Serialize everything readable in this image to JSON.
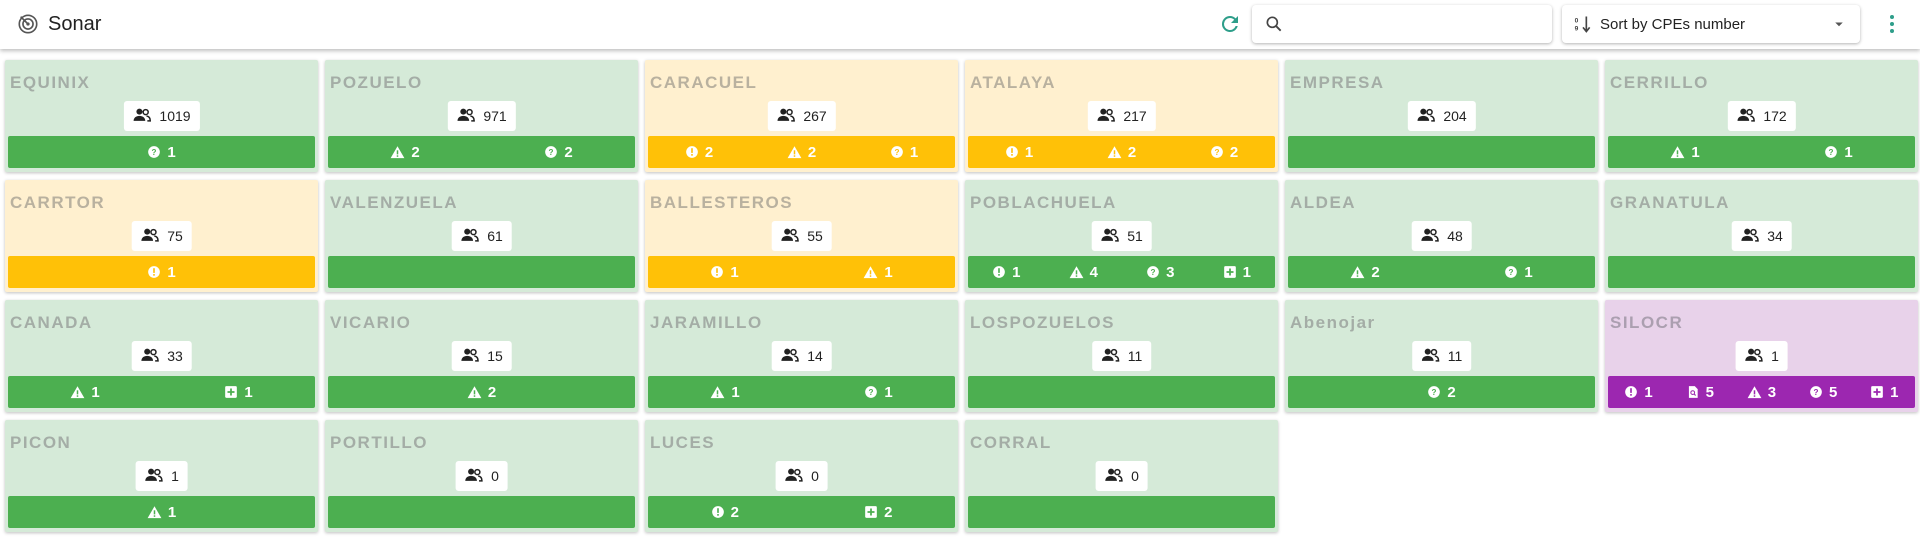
{
  "header": {
    "title": "Sonar",
    "search_placeholder": "",
    "search_value": "",
    "sort_label": "Sort by CPEs number"
  },
  "colors": {
    "green_card": "#d5ead8",
    "green_bar": "#4caf50",
    "amber_card": "#fff0cf",
    "amber_bar": "#ffc107",
    "purple_card": "#e8d2ea",
    "purple_bar": "#9c27b0",
    "accent": "#2e9e8a"
  },
  "cards": [
    {
      "name": "EQUINIX",
      "count": "1019",
      "tone": "green",
      "badges": [
        {
          "icon": "help-circle-icon",
          "value": "1"
        }
      ]
    },
    {
      "name": "POZUELO",
      "count": "971",
      "tone": "green",
      "badges": [
        {
          "icon": "warning-icon",
          "value": "2"
        },
        {
          "icon": "help-circle-icon",
          "value": "2"
        }
      ]
    },
    {
      "name": "CARACUEL",
      "count": "267",
      "tone": "amber",
      "badges": [
        {
          "icon": "alert-circle-icon",
          "value": "2"
        },
        {
          "icon": "warning-icon",
          "value": "2"
        },
        {
          "icon": "help-circle-icon",
          "value": "1"
        }
      ]
    },
    {
      "name": "ATALAYA",
      "count": "217",
      "tone": "amber",
      "badges": [
        {
          "icon": "alert-circle-icon",
          "value": "1"
        },
        {
          "icon": "warning-icon",
          "value": "2"
        },
        {
          "icon": "help-circle-icon",
          "value": "2"
        }
      ]
    },
    {
      "name": "EMPRESA",
      "count": "204",
      "tone": "green",
      "badges": []
    },
    {
      "name": "CERRILLO",
      "count": "172",
      "tone": "green",
      "badges": [
        {
          "icon": "warning-icon",
          "value": "1"
        },
        {
          "icon": "help-circle-icon",
          "value": "1"
        }
      ]
    },
    {
      "name": "CARRTOR",
      "count": "75",
      "tone": "amber",
      "badges": [
        {
          "icon": "alert-circle-icon",
          "value": "1"
        }
      ]
    },
    {
      "name": "VALENZUELA",
      "count": "61",
      "tone": "green",
      "badges": []
    },
    {
      "name": "BALLESTEROS",
      "count": "55",
      "tone": "amber",
      "badges": [
        {
          "icon": "alert-circle-icon",
          "value": "1"
        },
        {
          "icon": "warning-icon",
          "value": "1"
        }
      ]
    },
    {
      "name": "POBLACHUELA",
      "count": "51",
      "tone": "green",
      "badges": [
        {
          "icon": "alert-circle-icon",
          "value": "1"
        },
        {
          "icon": "warning-icon",
          "value": "4"
        },
        {
          "icon": "help-circle-icon",
          "value": "3"
        },
        {
          "icon": "plus-box-icon",
          "value": "1"
        }
      ]
    },
    {
      "name": "ALDEA",
      "count": "48",
      "tone": "green",
      "badges": [
        {
          "icon": "warning-icon",
          "value": "2"
        },
        {
          "icon": "help-circle-icon",
          "value": "1"
        }
      ]
    },
    {
      "name": "GRANATULA",
      "count": "34",
      "tone": "green",
      "badges": []
    },
    {
      "name": "CANADA",
      "count": "33",
      "tone": "green",
      "badges": [
        {
          "icon": "warning-icon",
          "value": "1"
        },
        {
          "icon": "plus-box-icon",
          "value": "1"
        }
      ]
    },
    {
      "name": "VICARIO",
      "count": "15",
      "tone": "green",
      "badges": [
        {
          "icon": "warning-icon",
          "value": "2"
        }
      ]
    },
    {
      "name": "JARAMILLO",
      "count": "14",
      "tone": "green",
      "badges": [
        {
          "icon": "warning-icon",
          "value": "1"
        },
        {
          "icon": "help-circle-icon",
          "value": "1"
        }
      ]
    },
    {
      "name": "LOSPOZUELOS",
      "count": "11",
      "tone": "green",
      "badges": []
    },
    {
      "name": "Abenojar",
      "count": "11",
      "tone": "green",
      "badges": [
        {
          "icon": "help-circle-icon",
          "value": "2"
        }
      ]
    },
    {
      "name": "SILOCR",
      "count": "1",
      "tone": "purple",
      "badges": [
        {
          "icon": "alert-circle-icon",
          "value": "1"
        },
        {
          "icon": "file-search-icon",
          "value": "5"
        },
        {
          "icon": "warning-icon",
          "value": "3"
        },
        {
          "icon": "help-circle-icon",
          "value": "5"
        },
        {
          "icon": "plus-box-icon",
          "value": "1"
        }
      ]
    },
    {
      "name": "PICON",
      "count": "1",
      "tone": "green",
      "badges": [
        {
          "icon": "warning-icon",
          "value": "1"
        }
      ]
    },
    {
      "name": "PORTILLO",
      "count": "0",
      "tone": "green",
      "badges": []
    },
    {
      "name": "LUCES",
      "count": "0",
      "tone": "green",
      "badges": [
        {
          "icon": "alert-circle-icon",
          "value": "2"
        },
        {
          "icon": "plus-box-icon",
          "value": "2"
        }
      ]
    },
    {
      "name": "CORRAL",
      "count": "0",
      "tone": "green",
      "badges": []
    }
  ]
}
